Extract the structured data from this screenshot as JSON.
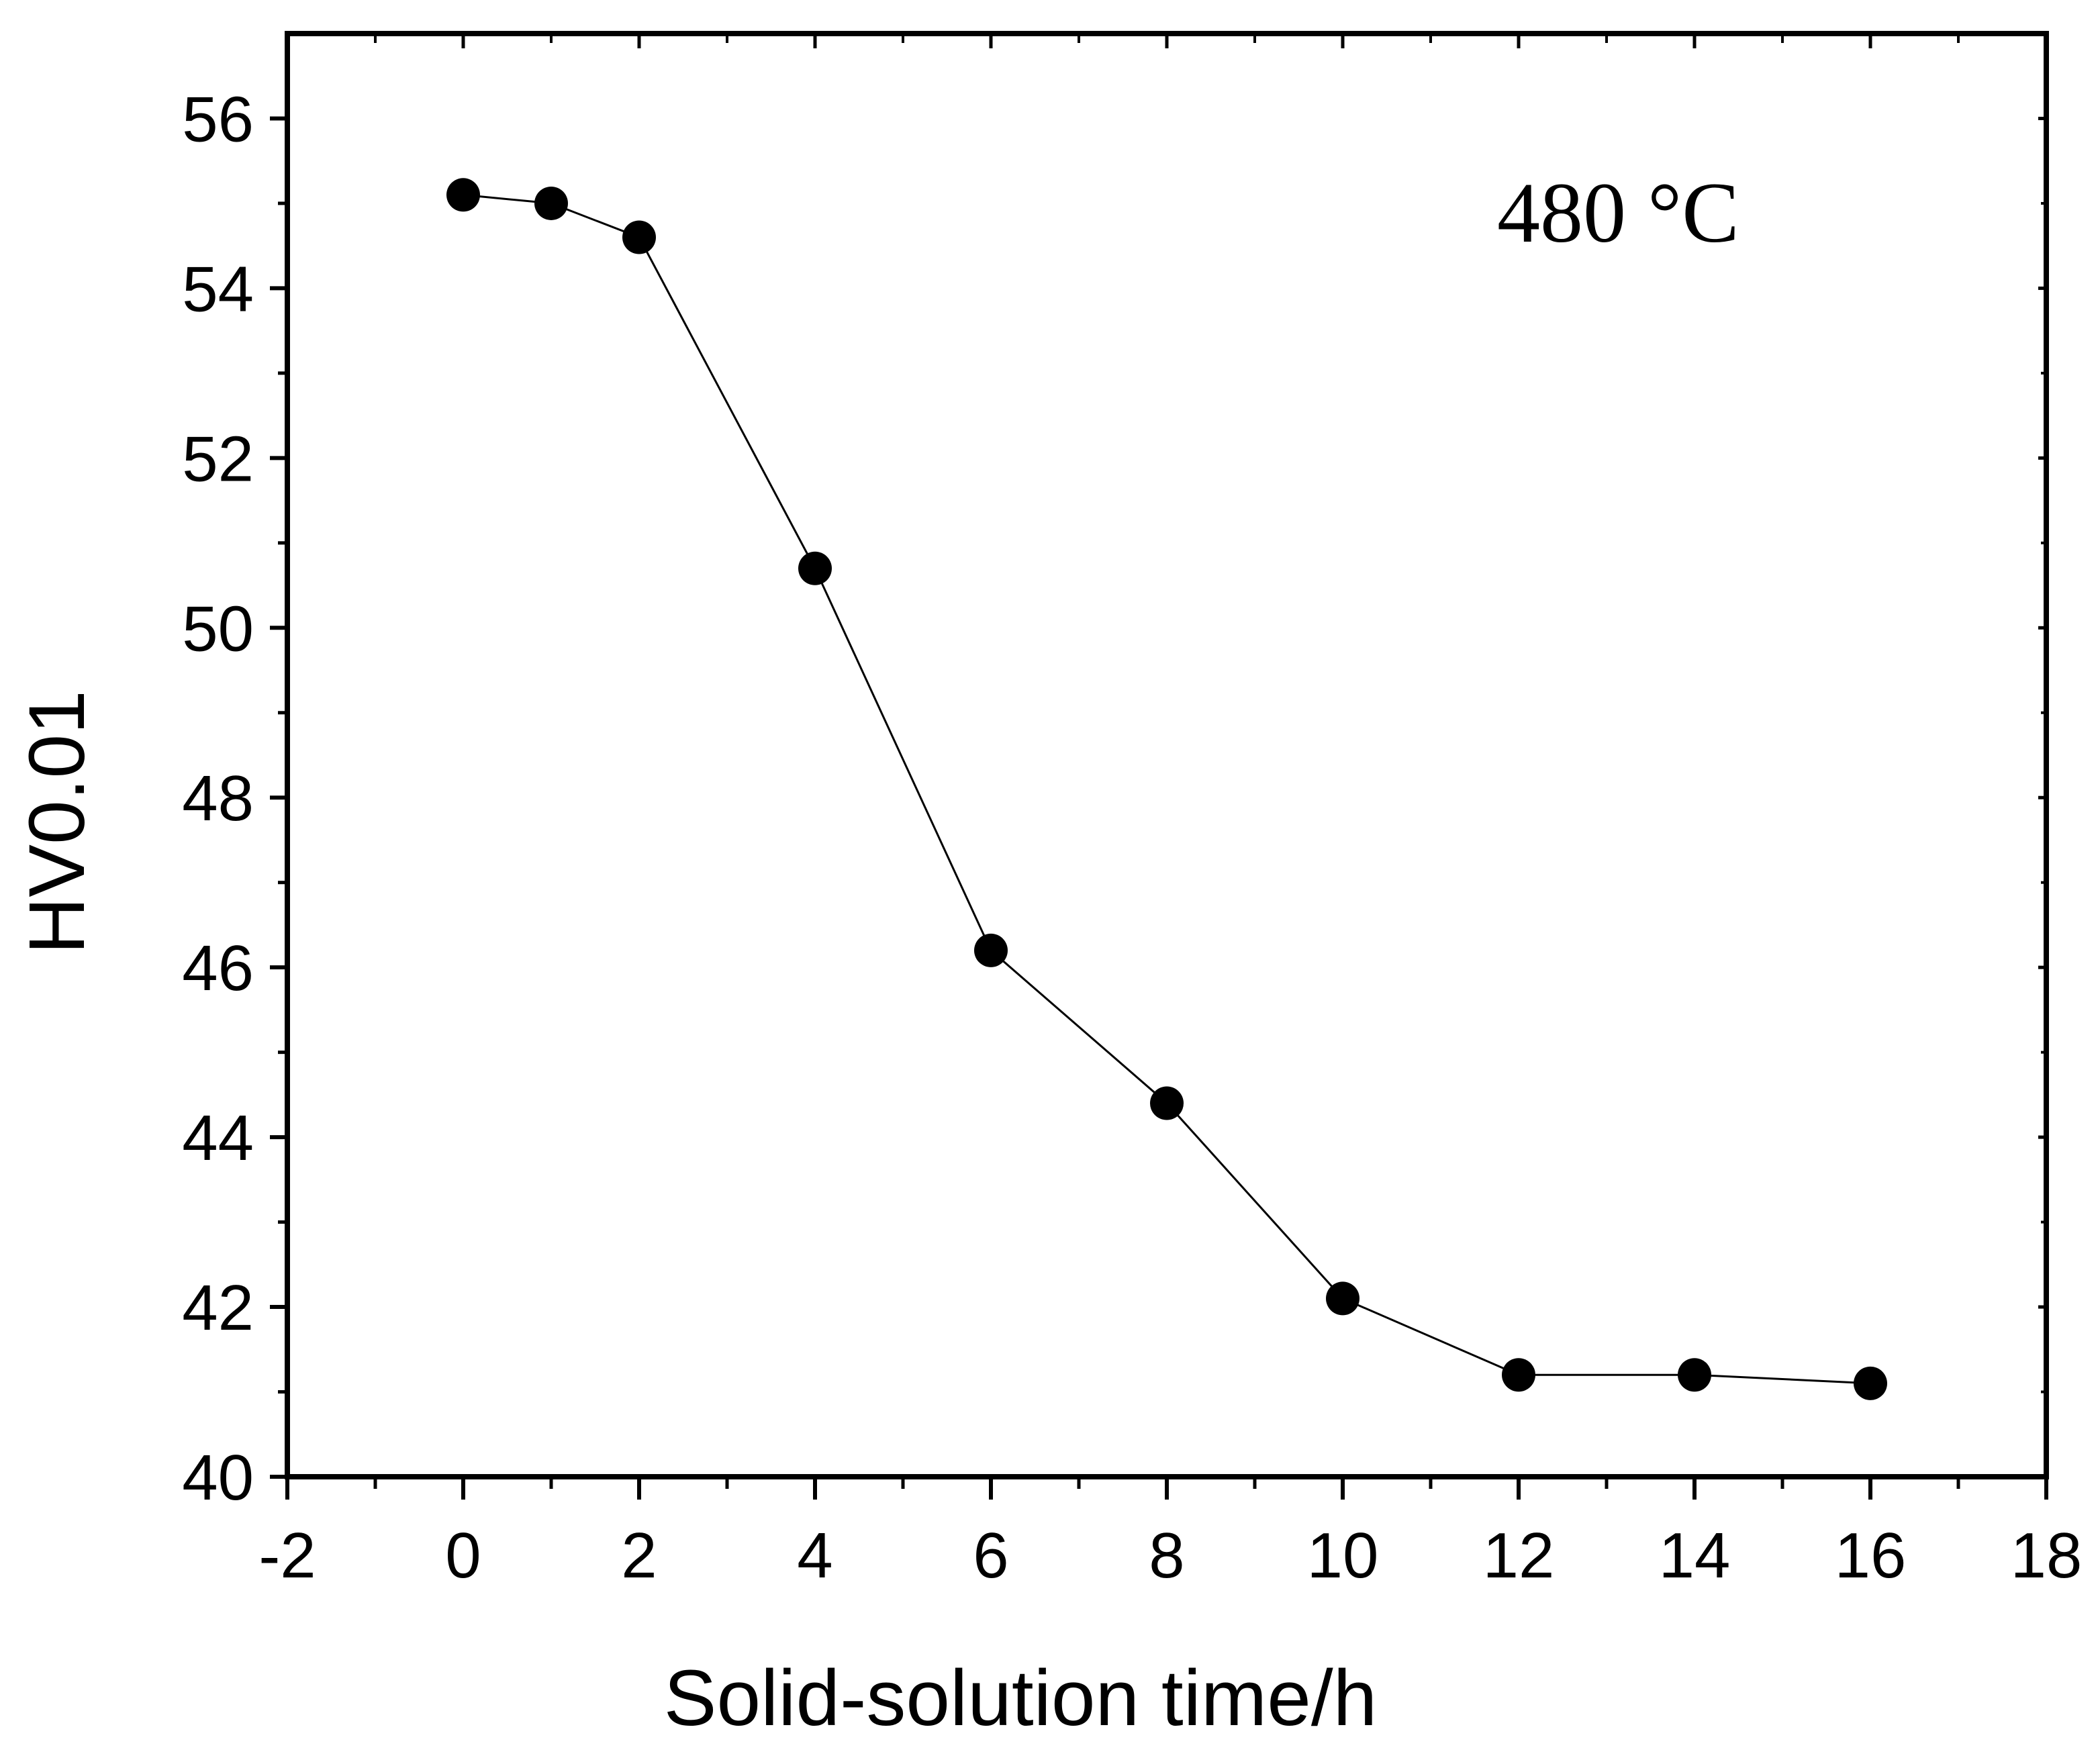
{
  "chart_data": {
    "type": "line",
    "title": "",
    "xlabel": "Solid-solution time/h",
    "ylabel": "HV0.01",
    "xlim": [
      -2,
      18
    ],
    "ylim": [
      40,
      57
    ],
    "x_ticks": [
      -2,
      0,
      2,
      4,
      6,
      8,
      10,
      12,
      14,
      16,
      18
    ],
    "y_ticks": [
      40,
      42,
      44,
      46,
      48,
      50,
      52,
      54,
      56
    ],
    "grid": false,
    "annotation": "480 °C",
    "series": [
      {
        "x": [
          0,
          1,
          2,
          4,
          6,
          8,
          10,
          12,
          14,
          16
        ],
        "y": [
          55.1,
          55.0,
          54.6,
          50.7,
          46.2,
          44.4,
          42.1,
          41.2,
          41.2,
          41.1
        ],
        "marker": "circle",
        "color": "#000000"
      }
    ],
    "colors": {
      "line": "#000000",
      "marker": "#000000",
      "frame": "#000000",
      "last_x_tick_label": "#1f5fa8"
    }
  }
}
